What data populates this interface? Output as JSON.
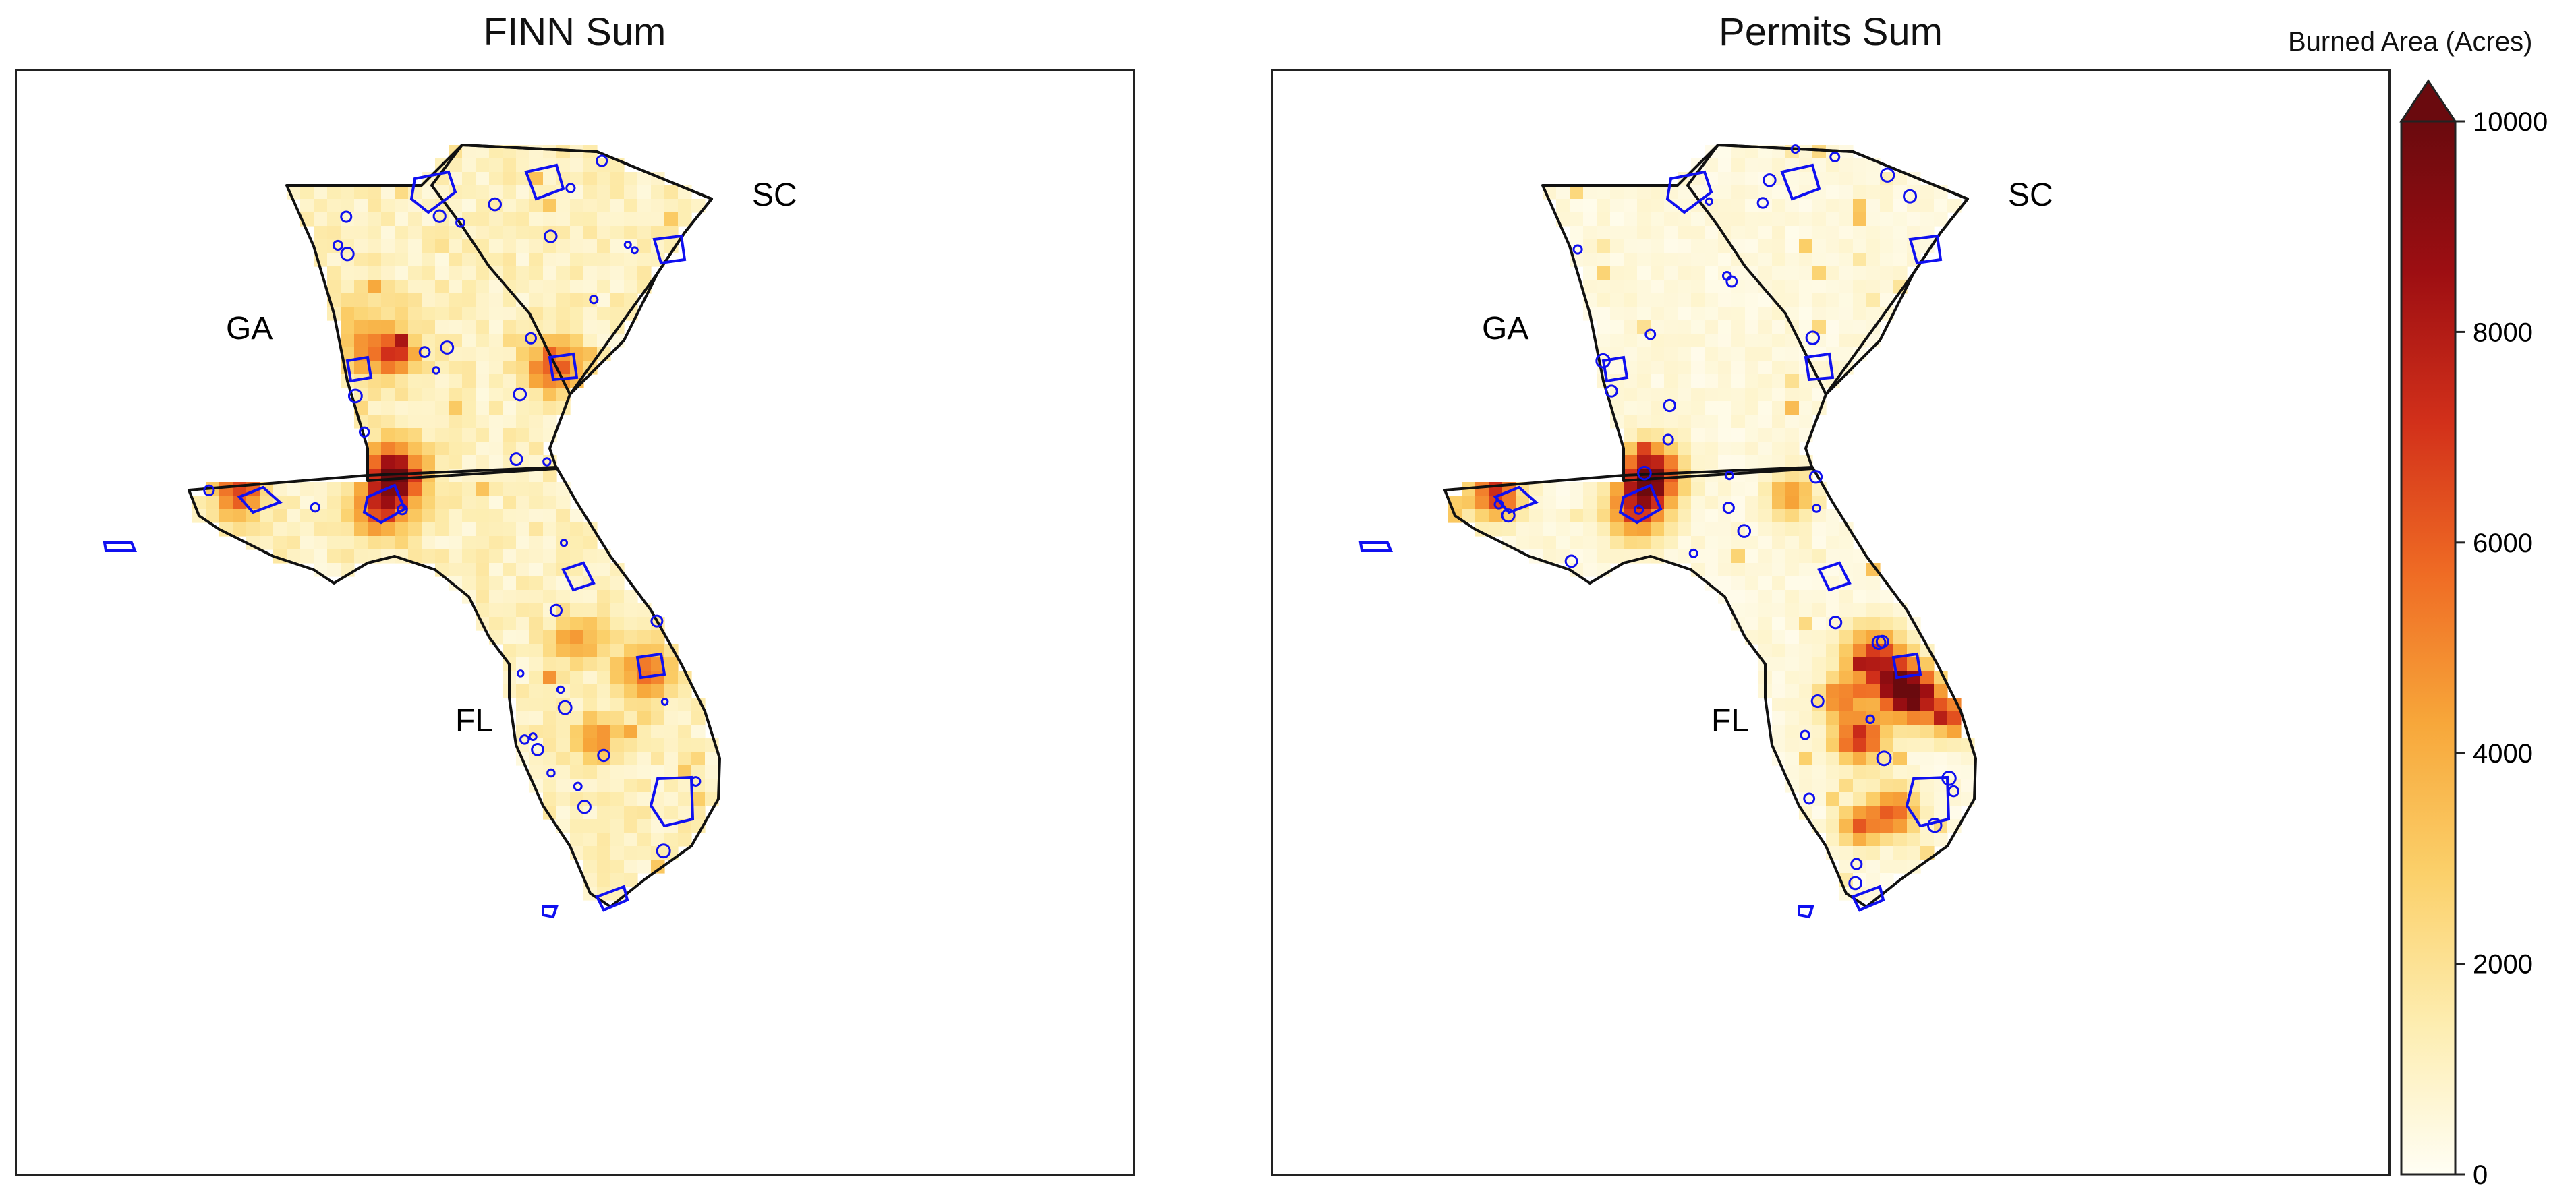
{
  "panels": [
    {
      "title": "FINN Sum",
      "variant": "finn"
    },
    {
      "title": "Permits Sum",
      "variant": "permits"
    }
  ],
  "state_labels": [
    "GA",
    "SC",
    "FL"
  ],
  "colorbar": {
    "title": "Burned Area (Acres)",
    "ticks": [
      "0",
      "2000",
      "4000",
      "6000",
      "8000",
      "10000"
    ],
    "min": 0,
    "max": 10000,
    "extend": "max",
    "colormap": [
      "#fffef4",
      "#fdedb0",
      "#fbd06a",
      "#f7a73a",
      "#ef6b24",
      "#d2301a",
      "#9d0e12",
      "#6a0a0e"
    ]
  },
  "colors": {
    "state_outline": "#111111",
    "protected_area_outline": "#1010f0"
  }
}
